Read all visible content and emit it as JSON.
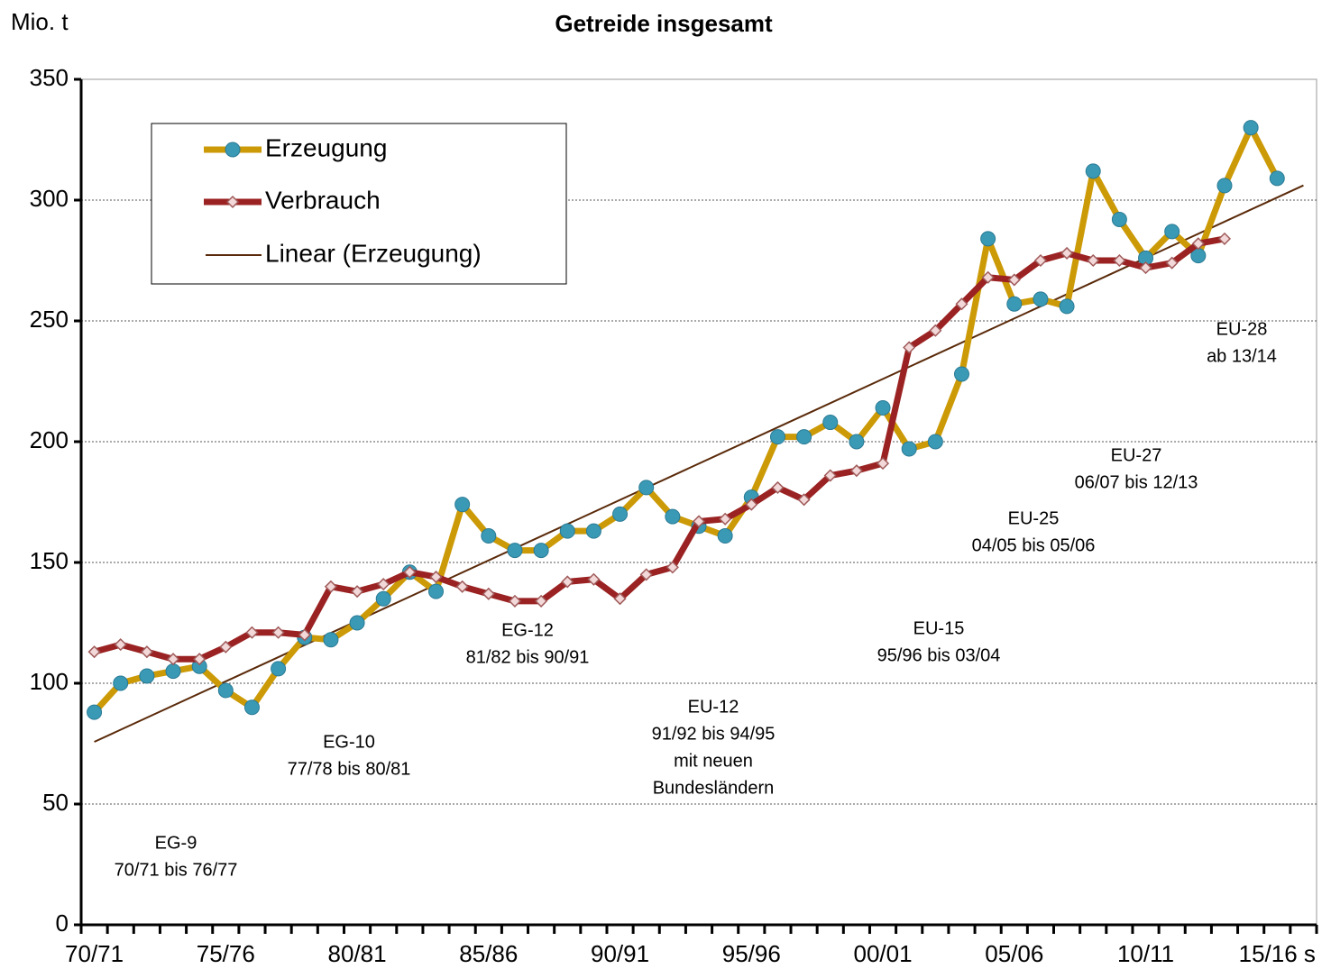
{
  "chart_data": {
    "type": "line",
    "title": "Getreide insgesamt",
    "y_label": "Mio. t",
    "categories": [
      "70/71",
      null,
      null,
      null,
      null,
      "75/76",
      null,
      null,
      null,
      null,
      "80/81",
      null,
      null,
      null,
      null,
      "85/86",
      null,
      null,
      null,
      null,
      "90/91",
      null,
      null,
      null,
      null,
      "95/96",
      null,
      null,
      null,
      null,
      "00/01",
      null,
      null,
      null,
      null,
      "05/06",
      null,
      null,
      null,
      null,
      "10/11",
      null,
      null,
      null,
      null,
      "15/16 s",
      null
    ],
    "series": [
      {
        "name": "Erzeugung",
        "color": "#cc9a06",
        "marker_color": "#3a9ab5",
        "values": [
          88,
          100,
          103,
          105,
          107,
          97,
          90,
          106,
          119,
          118,
          125,
          135,
          146,
          138,
          174,
          161,
          155,
          155,
          163,
          163,
          170,
          181,
          169,
          165,
          161,
          177,
          202,
          202,
          208,
          200,
          214,
          197,
          200,
          228,
          284,
          257,
          259,
          256,
          312,
          292,
          276,
          287,
          277,
          306,
          330,
          309,
          null
        ]
      },
      {
        "name": "Verbrauch",
        "color": "#9b2222",
        "marker_color": "#f2d8d8",
        "values": [
          113,
          116,
          113,
          110,
          110,
          115,
          121,
          121,
          120,
          140,
          138,
          141,
          146,
          144,
          140,
          137,
          134,
          134,
          142,
          143,
          135,
          145,
          148,
          167,
          168,
          174,
          181,
          176,
          186,
          188,
          191,
          239,
          246,
          257,
          268,
          267,
          275,
          278,
          275,
          275,
          272,
          274,
          282,
          284,
          null,
          null,
          null
        ]
      }
    ],
    "trend": {
      "name": "Linear (Erzeugung)",
      "color": "#5a2a0a"
    },
    "ylim": [
      0,
      350
    ],
    "yticks": [
      0,
      50,
      100,
      150,
      200,
      250,
      300,
      350
    ],
    "grid": true,
    "annotations": [
      [
        "EG-9",
        "70/71 bis 76/77"
      ],
      [
        "EG-10",
        "77/78 bis 80/81"
      ],
      [
        "EG-12",
        "81/82 bis 90/91"
      ],
      [
        "EU-12",
        "91/92 bis 94/95",
        "mit neuen",
        "Bundesländern"
      ],
      [
        "EU-15",
        "95/96 bis 03/04"
      ],
      [
        "EU-25",
        "04/05 bis 05/06"
      ],
      [
        "EU-27",
        "06/07 bis 12/13"
      ],
      [
        "EU-28",
        "ab 13/14"
      ]
    ]
  }
}
